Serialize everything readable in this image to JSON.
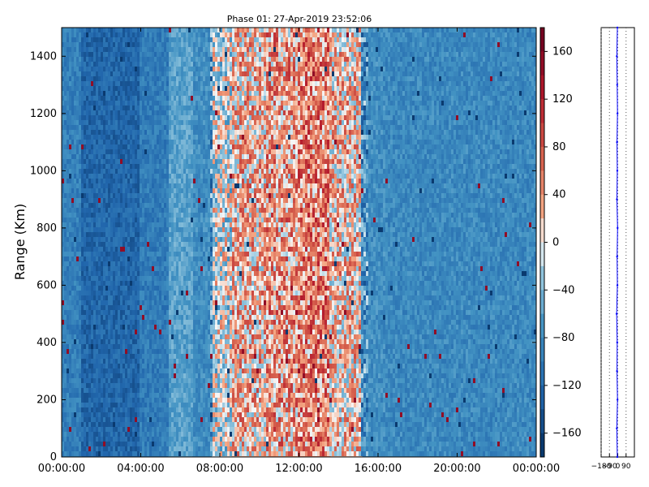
{
  "chart_data": [
    {
      "type": "heatmap",
      "title": "Phase 01: 27-Apr-2019 23:52:06",
      "xlabel": "",
      "ylabel": "Range (Km)",
      "x_ticks": [
        "00:00:00",
        "04:00:00",
        "08:00:00",
        "12:00:00",
        "16:00:00",
        "20:00:00",
        "00:00:00"
      ],
      "x_tick_hours": [
        0,
        4,
        8,
        12,
        16,
        20,
        24
      ],
      "xlim_hours": [
        0,
        24
      ],
      "y_ticks": [
        0,
        200,
        400,
        600,
        800,
        1000,
        1200,
        1400
      ],
      "ylim": [
        0,
        1500
      ],
      "colormap": "RdBu_r",
      "colorbar": {
        "vmin": -180,
        "vmax": 180,
        "ticks": [
          160,
          120,
          80,
          40,
          0,
          -40,
          -80,
          -120,
          -160
        ],
        "tick_labels": [
          "160",
          "120",
          "80",
          "40",
          "0",
          "−40",
          "−80",
          "−120",
          "−160"
        ]
      },
      "phase_profile_hours": [
        {
          "start": 0.0,
          "end": 1.0,
          "phase": -95
        },
        {
          "start": 1.0,
          "end": 4.0,
          "phase": -125
        },
        {
          "start": 4.0,
          "end": 5.4,
          "phase": -100
        },
        {
          "start": 5.4,
          "end": 6.6,
          "phase": -60
        },
        {
          "start": 6.6,
          "end": 7.6,
          "phase": -80
        },
        {
          "start": 7.6,
          "end": 8.6,
          "phase": -10
        },
        {
          "start": 8.6,
          "end": 10.4,
          "phase": 25
        },
        {
          "start": 10.4,
          "end": 12.0,
          "phase": 40
        },
        {
          "start": 12.0,
          "end": 13.6,
          "phase": 55
        },
        {
          "start": 13.6,
          "end": 15.2,
          "phase": 20
        },
        {
          "start": 15.2,
          "end": 16.4,
          "phase": -80
        },
        {
          "start": 16.4,
          "end": 24.0,
          "phase": -85
        }
      ],
      "grid": false,
      "legend": "none"
    },
    {
      "type": "line",
      "title": "",
      "xlabel": "",
      "ylabel": "",
      "xlim": [
        -180,
        180
      ],
      "x_ticks": [
        -180,
        -90,
        0,
        90
      ],
      "x_tick_labels": [
        "−180",
        "−90",
        "0",
        "90"
      ],
      "ylim": [
        0,
        1500
      ],
      "grid": true,
      "series": [
        {
          "color": "#0000ff",
          "y": [
            0,
            100,
            200,
            300,
            400,
            500,
            600,
            700,
            800,
            900,
            1000,
            1100,
            1200,
            1300,
            1400,
            1500
          ],
          "x": [
            -5,
            -10,
            -3,
            -8,
            -6,
            -12,
            -4,
            -7,
            -2,
            -9,
            -5,
            -8,
            -3,
            -6,
            -10,
            -4
          ]
        }
      ]
    }
  ]
}
